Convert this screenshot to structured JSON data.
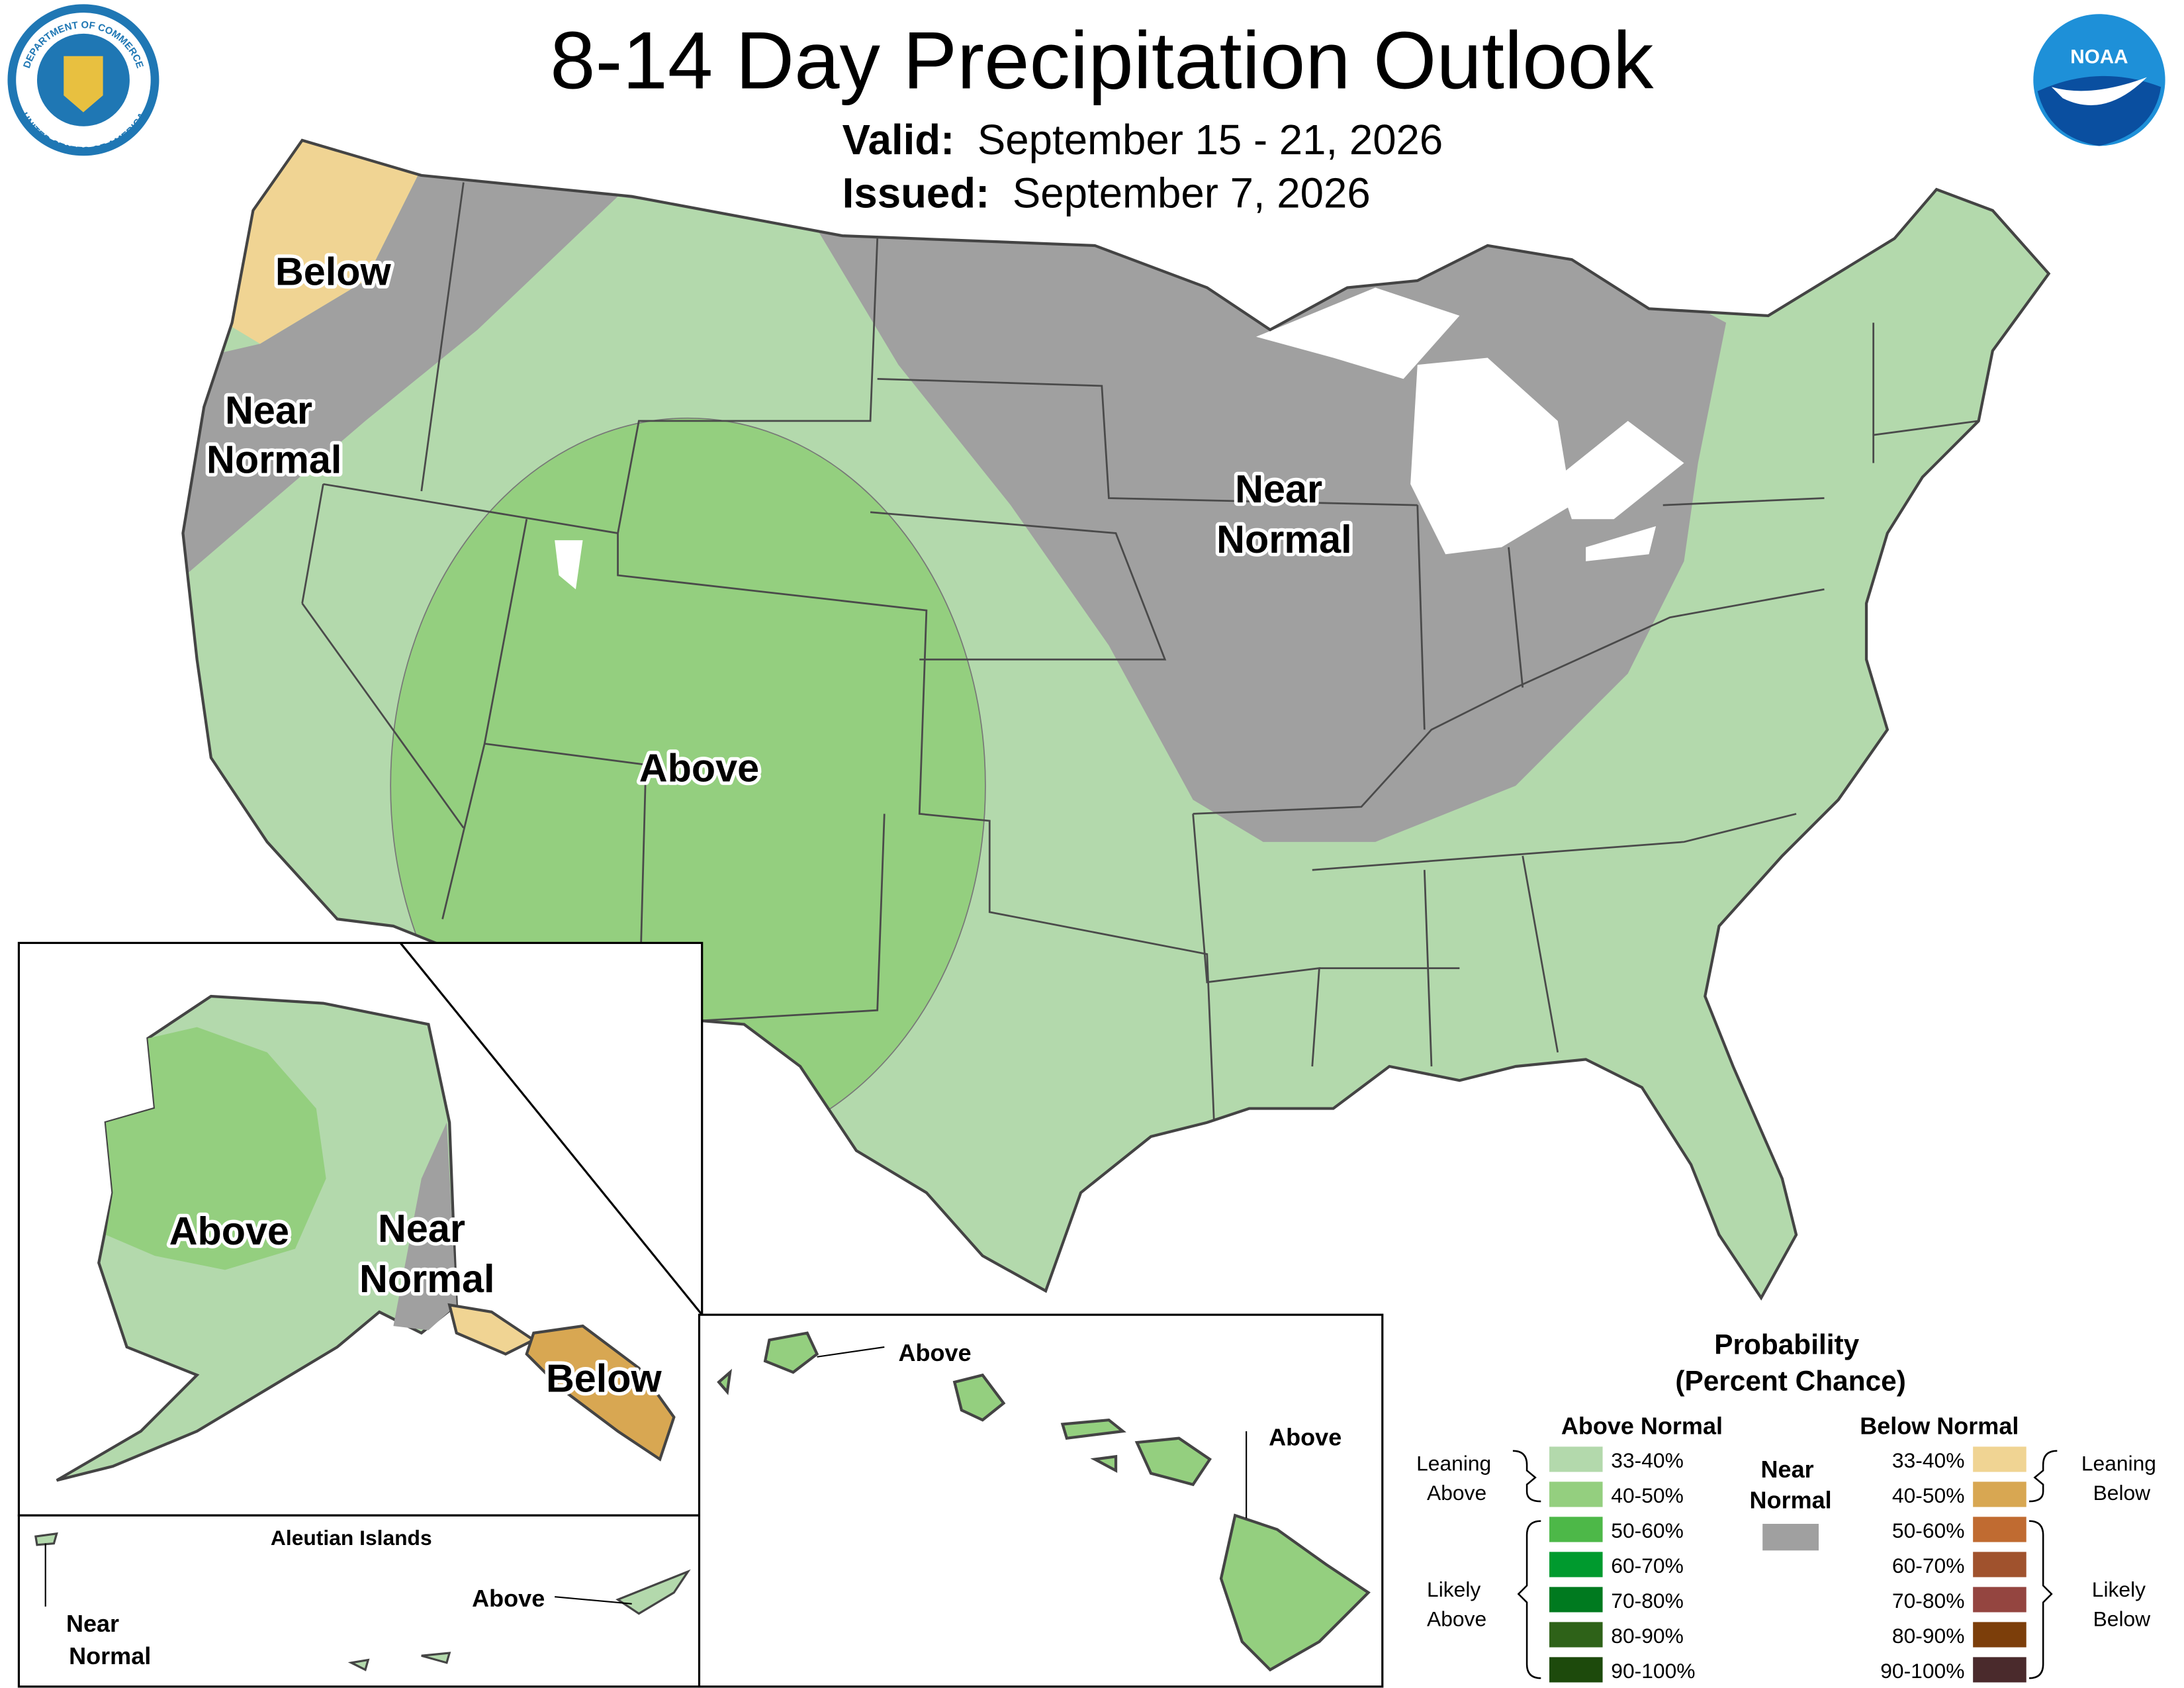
{
  "header": {
    "title": "8-14 Day Precipitation Outlook",
    "valid_label": "Valid:",
    "valid": "September 15 - 21, 2026",
    "issued_label": "Issued:",
    "issued": "September 7, 2026"
  },
  "logos": {
    "seal_top": "DEPARTMENT OF COMMERCE",
    "seal_bottom": "UNITED STATES OF AMERICA",
    "noaa": "NOAA"
  },
  "map_labels": {
    "conus": {
      "below": "Below",
      "near_west": [
        "Near",
        "Normal"
      ],
      "near_central": [
        "Near",
        "Normal"
      ],
      "above": "Above"
    },
    "alaska": {
      "above": "Above",
      "near": [
        "Near",
        "Normal"
      ],
      "below": "Below"
    },
    "aleutians": {
      "title": "Aleutian Islands",
      "near": [
        "Near",
        "Normal"
      ],
      "above": "Above"
    },
    "hawaii": {
      "above_kauai": "Above",
      "above_big_island": "Above"
    }
  },
  "legend": {
    "title": [
      "Probability",
      "(Percent Chance)"
    ],
    "above": {
      "title": "Above Normal",
      "bins": [
        {
          "label": "33-40%",
          "color": "#b3d9ac"
        },
        {
          "label": "40-50%",
          "color": "#94cf7f"
        },
        {
          "label": "50-60%",
          "color": "#4db848"
        },
        {
          "label": "60-70%",
          "color": "#009a2e"
        },
        {
          "label": "70-80%",
          "color": "#007a1f"
        },
        {
          "label": "80-90%",
          "color": "#2e6218"
        },
        {
          "label": "90-100%",
          "color": "#1d4a0c"
        }
      ]
    },
    "below": {
      "title": "Below Normal",
      "bins": [
        {
          "label": "33-40%",
          "color": "#f0d493"
        },
        {
          "label": "40-50%",
          "color": "#d8a752"
        },
        {
          "label": "50-60%",
          "color": "#c06b31"
        },
        {
          "label": "60-70%",
          "color": "#a0522d"
        },
        {
          "label": "70-80%",
          "color": "#944540"
        },
        {
          "label": "80-90%",
          "color": "#7c3e0a"
        },
        {
          "label": "90-100%",
          "color": "#4a2a2c"
        }
      ]
    },
    "near": {
      "title": [
        "Near",
        "Normal"
      ],
      "color": "#a0a0a0"
    },
    "groups": {
      "leaning_above": [
        "Leaning",
        "Above"
      ],
      "likely_above": [
        "Likely",
        "Above"
      ],
      "leaning_below": [
        "Leaning",
        "Below"
      ],
      "likely_below": [
        "Likely",
        "Below"
      ]
    }
  }
}
